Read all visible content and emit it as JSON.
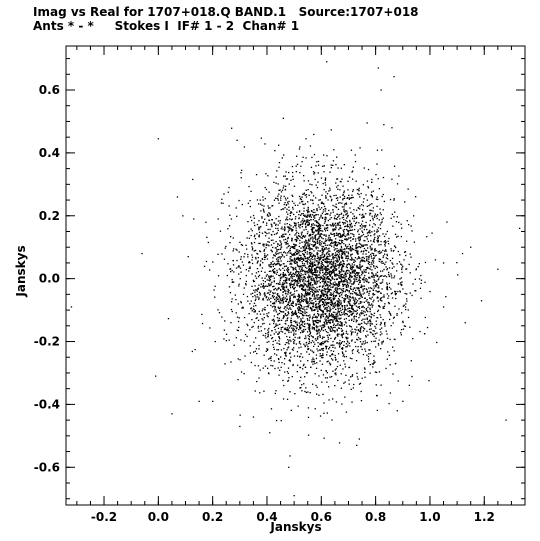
{
  "header": {
    "line1": "Imag vs Real for 1707+018.Q BAND.1   Source:1707+018",
    "line2": "Ants * - *     Stokes I  IF# 1 - 2  Chan# 1"
  },
  "chart_data": {
    "type": "scatter",
    "title": "Imag vs Real for 1707+018.Q BAND.1   Source:1707+018",
    "subtitle": "Ants * - *     Stokes I  IF# 1 - 2  Chan# 1",
    "xlabel": "Janskys",
    "ylabel": "Janskys",
    "xlim": [
      -0.34,
      1.35
    ],
    "ylim": [
      -0.72,
      0.74
    ],
    "x_ticks": [
      -0.2,
      0.0,
      0.2,
      0.4,
      0.6,
      0.8,
      1.0,
      1.2
    ],
    "x_tick_labels": [
      "-0.2",
      "0.0",
      "0.2",
      "0.4",
      "0.6",
      "0.8",
      "1.0",
      "1.2"
    ],
    "y_ticks": [
      -0.6,
      -0.4,
      -0.2,
      0.0,
      0.2,
      0.4,
      0.6
    ],
    "y_tick_labels": [
      "-0.6",
      "-0.4",
      "-0.2",
      "0.0",
      "0.2",
      "0.4",
      "0.6"
    ],
    "grid": false,
    "legend": "none",
    "colors": {
      "points": "#000000",
      "axes": "#000000",
      "background": "#ffffff"
    },
    "distribution": {
      "mean_x": 0.6,
      "mean_y": 0.0,
      "std_x": 0.14,
      "std_y": 0.15,
      "n_points": 5000
    },
    "outliers": [
      [
        -0.32,
        -0.09
      ],
      [
        -0.06,
        0.08
      ],
      [
        -0.01,
        -0.31
      ],
      [
        0.0,
        0.445
      ],
      [
        0.05,
        -0.43
      ],
      [
        0.07,
        0.26
      ],
      [
        0.09,
        0.2
      ],
      [
        0.11,
        0.07
      ],
      [
        0.13,
        0.19
      ],
      [
        0.15,
        -0.39
      ],
      [
        0.2,
        -0.39
      ],
      [
        0.22,
        0.19
      ],
      [
        0.26,
        0.29
      ],
      [
        0.29,
        0.44
      ],
      [
        0.3,
        -0.47
      ],
      [
        0.35,
        -0.44
      ],
      [
        0.41,
        -0.49
      ],
      [
        0.46,
        0.51
      ],
      [
        0.5,
        -0.69
      ],
      [
        0.48,
        -0.6
      ],
      [
        0.62,
        0.69
      ],
      [
        0.73,
        -0.53
      ],
      [
        0.74,
        -0.51
      ],
      [
        0.81,
        0.67
      ],
      [
        0.82,
        0.6
      ],
      [
        0.83,
        0.49
      ],
      [
        0.86,
        0.48
      ],
      [
        0.88,
        -0.42
      ],
      [
        0.9,
        -0.39
      ],
      [
        0.94,
        0.2
      ],
      [
        1.02,
        0.06
      ],
      [
        1.05,
        0.05
      ],
      [
        1.05,
        -0.09
      ],
      [
        1.12,
        0.08
      ],
      [
        1.13,
        -0.14
      ],
      [
        1.15,
        0.1
      ],
      [
        1.19,
        -0.07
      ],
      [
        1.25,
        0.03
      ],
      [
        1.28,
        -0.45
      ],
      [
        1.33,
        0.16
      ]
    ]
  }
}
